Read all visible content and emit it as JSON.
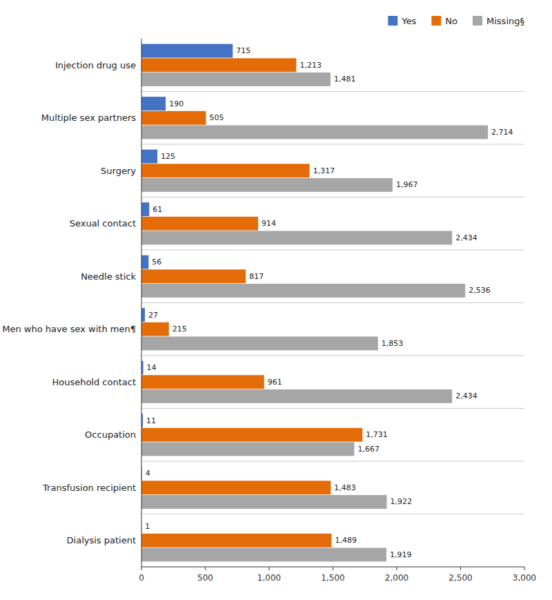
{
  "chart_data": {
    "type": "bar",
    "orientation": "horizontal",
    "categories": [
      "Injection drug use",
      "Multiple sex partners",
      "Surgery",
      "Sexual contact",
      "Needle stick",
      "Men who have sex with men¶",
      "Household contact",
      "Occupation",
      "Transfusion recipient",
      "Dialysis patient"
    ],
    "series": [
      {
        "name": "Yes",
        "color": "#4472C4",
        "values": [
          715,
          190,
          125,
          61,
          56,
          27,
          14,
          11,
          4,
          1
        ],
        "value_labels": [
          "715",
          "190",
          "125",
          "61",
          "56",
          "27",
          "14",
          "11",
          "4",
          "1"
        ]
      },
      {
        "name": "No",
        "color": "#E36C09",
        "values": [
          1213,
          505,
          1317,
          914,
          817,
          215,
          961,
          1731,
          1483,
          1489
        ],
        "value_labels": [
          "1,213",
          "505",
          "1,317",
          "914",
          "817",
          "215",
          "961",
          "1,731",
          "1,483",
          "1,489"
        ]
      },
      {
        "name": "Missing§",
        "color": "#A6A6A6",
        "values": [
          1481,
          2714,
          1967,
          2434,
          2536,
          1853,
          2434,
          1667,
          1922,
          1919
        ],
        "value_labels": [
          "1,481",
          "2,714",
          "1,967",
          "2,434",
          "2,536",
          "1,853",
          "2,434",
          "1,667",
          "1,922",
          "1,919"
        ]
      }
    ],
    "xlim": [
      0,
      3000
    ],
    "xticks": [
      0,
      500,
      {
        "value": 1000,
        "label": "1,000"
      },
      {
        "value": 1500,
        "label": "1,500"
      },
      {
        "value": 2000,
        "label": "2,000"
      },
      {
        "value": 2500,
        "label": "2,500"
      },
      {
        "value": 3000,
        "label": "3,000"
      }
    ],
    "data_labels": true,
    "legend": "upper right",
    "grid": false
  }
}
